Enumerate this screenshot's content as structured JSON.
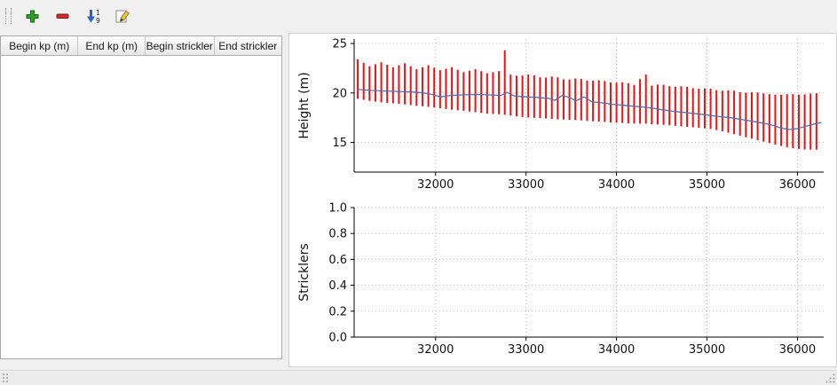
{
  "toolbar": {
    "buttons": [
      {
        "id": "add",
        "icon": "plus-icon"
      },
      {
        "id": "remove",
        "icon": "minus-icon"
      },
      {
        "id": "sort",
        "icon": "sort-numeric-icon"
      },
      {
        "id": "edit",
        "icon": "edit-icon"
      }
    ]
  },
  "table": {
    "columns": [
      "Begin kp (m)",
      "End kp (m)",
      "Begin strickler",
      "End strickler"
    ],
    "rows": []
  },
  "chart_data": [
    {
      "type": "errorbar-line",
      "title": "",
      "xlabel": "",
      "ylabel": "Height (m)",
      "xlim": [
        31100,
        36290
      ],
      "ylim": [
        12.0,
        25.45
      ],
      "xticks": [
        32000,
        33000,
        34000,
        35000,
        36000
      ],
      "yticks": [
        15,
        20,
        25
      ],
      "ytick_labels": [
        "15",
        "20",
        "25"
      ],
      "grid": true,
      "bar_color": "#ee1111",
      "line_color": "#4c72b0",
      "bars": {
        "start": 31140,
        "end": 36265,
        "step": 65,
        "envelope": [
          [
            31140,
            23.4,
            19.4
          ],
          [
            31270,
            22.7,
            19.2
          ],
          [
            31400,
            23.1,
            19.05
          ],
          [
            31530,
            22.6,
            18.95
          ],
          [
            31660,
            23.0,
            18.85
          ],
          [
            31790,
            22.4,
            18.7
          ],
          [
            31920,
            22.8,
            18.6
          ],
          [
            32050,
            22.3,
            18.45
          ],
          [
            32180,
            22.6,
            18.3
          ],
          [
            32310,
            22.1,
            18.2
          ],
          [
            32440,
            22.4,
            18.05
          ],
          [
            32570,
            22.0,
            17.9
          ],
          [
            32700,
            22.2,
            17.85
          ],
          [
            32755,
            25.0,
            17.8
          ],
          [
            32800,
            21.9,
            17.75
          ],
          [
            32920,
            21.7,
            17.6
          ],
          [
            33050,
            21.9,
            17.5
          ],
          [
            33180,
            21.5,
            17.45
          ],
          [
            33310,
            21.7,
            17.35
          ],
          [
            33440,
            21.3,
            17.3
          ],
          [
            33570,
            21.5,
            17.25
          ],
          [
            33700,
            21.2,
            17.15
          ],
          [
            33830,
            21.3,
            17.1
          ],
          [
            33960,
            21.0,
            17.0
          ],
          [
            34090,
            21.1,
            16.95
          ],
          [
            34200,
            20.8,
            16.9
          ],
          [
            34320,
            22.0,
            16.9
          ],
          [
            34365,
            20.7,
            16.85
          ],
          [
            34490,
            20.9,
            16.8
          ],
          [
            34620,
            20.6,
            16.7
          ],
          [
            34750,
            20.7,
            16.6
          ],
          [
            34880,
            20.4,
            16.5
          ],
          [
            35010,
            20.5,
            16.4
          ],
          [
            35140,
            20.2,
            16.2
          ],
          [
            35270,
            20.3,
            15.9
          ],
          [
            35400,
            20.0,
            15.6
          ],
          [
            35530,
            20.1,
            15.3
          ],
          [
            35660,
            19.9,
            15.0
          ],
          [
            35790,
            19.8,
            14.7
          ],
          [
            35920,
            19.9,
            14.45
          ],
          [
            36050,
            19.8,
            14.3
          ],
          [
            36180,
            20.0,
            14.25
          ],
          [
            36265,
            19.9,
            14.3
          ]
        ]
      },
      "line": [
        [
          31140,
          20.35
        ],
        [
          31300,
          20.25
        ],
        [
          31450,
          20.2
        ],
        [
          31600,
          20.15
        ],
        [
          31750,
          20.1
        ],
        [
          31870,
          20.0
        ],
        [
          31960,
          19.85
        ],
        [
          32060,
          19.6
        ],
        [
          32160,
          19.75
        ],
        [
          32300,
          19.8
        ],
        [
          32450,
          19.85
        ],
        [
          32600,
          19.8
        ],
        [
          32720,
          19.75
        ],
        [
          32790,
          20.05
        ],
        [
          32870,
          19.7
        ],
        [
          33000,
          19.6
        ],
        [
          33120,
          19.55
        ],
        [
          33250,
          19.45
        ],
        [
          33320,
          19.25
        ],
        [
          33400,
          19.75
        ],
        [
          33480,
          19.55
        ],
        [
          33550,
          19.2
        ],
        [
          33640,
          19.6
        ],
        [
          33730,
          19.1
        ],
        [
          33840,
          19.0
        ],
        [
          33960,
          18.85
        ],
        [
          34080,
          18.75
        ],
        [
          34200,
          18.65
        ],
        [
          34330,
          18.55
        ],
        [
          34470,
          18.35
        ],
        [
          34620,
          18.15
        ],
        [
          34780,
          18.0
        ],
        [
          34940,
          17.85
        ],
        [
          35100,
          17.65
        ],
        [
          35260,
          17.5
        ],
        [
          35420,
          17.25
        ],
        [
          35560,
          17.05
        ],
        [
          35700,
          16.8
        ],
        [
          35820,
          16.45
        ],
        [
          35910,
          16.3
        ],
        [
          36000,
          16.4
        ],
        [
          36100,
          16.65
        ],
        [
          36200,
          16.9
        ],
        [
          36265,
          17.0
        ]
      ]
    },
    {
      "type": "empty",
      "title": "",
      "xlabel": "",
      "ylabel": "Stricklers",
      "xlim": [
        31100,
        36290
      ],
      "ylim": [
        0,
        1
      ],
      "xticks": [
        32000,
        33000,
        34000,
        35000,
        36000
      ],
      "yticks": [
        0,
        0.2,
        0.4,
        0.6,
        0.8,
        1.0
      ],
      "ytick_labels": [
        "0.0",
        "0.2",
        "0.4",
        "0.6",
        "0.8",
        "1.0"
      ],
      "grid": true
    }
  ],
  "colors": {
    "bar": "#ee1111",
    "line": "#4c72b0",
    "grid": "#bbbbbb",
    "axis": "#000000"
  }
}
